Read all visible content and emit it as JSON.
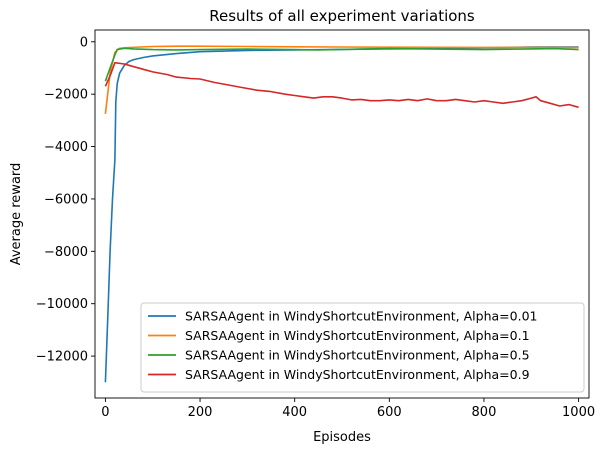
{
  "chart_data": {
    "type": "line",
    "title": "Results of all experiment variations",
    "xlabel": "Episodes",
    "ylabel": "Average reward",
    "xlim": [
      -22,
      1022
    ],
    "ylim": [
      -13600,
      450
    ],
    "xticks": [
      0,
      200,
      400,
      600,
      800,
      1000
    ],
    "yticks": [
      0,
      -2000,
      -4000,
      -6000,
      -8000,
      -10000,
      -12000
    ],
    "xtick_labels": [
      "0",
      "200",
      "400",
      "600",
      "800",
      "1000"
    ],
    "ytick_labels": [
      "0",
      "−2000",
      "−4000",
      "−6000",
      "−8000",
      "−10000",
      "−12000"
    ],
    "grid": false,
    "legend_position": "lower-right",
    "series": [
      {
        "name": "SARSAAgent in WindyShortcutEnvironment, Alpha=0.01",
        "color": "#1f77b4",
        "points": [
          [
            0,
            -13000
          ],
          [
            5,
            -10500
          ],
          [
            10,
            -8000
          ],
          [
            15,
            -6000
          ],
          [
            20,
            -4500
          ],
          [
            22,
            -2300
          ],
          [
            25,
            -1600
          ],
          [
            30,
            -1200
          ],
          [
            40,
            -900
          ],
          [
            50,
            -750
          ],
          [
            60,
            -680
          ],
          [
            80,
            -600
          ],
          [
            100,
            -540
          ],
          [
            150,
            -450
          ],
          [
            200,
            -380
          ],
          [
            300,
            -330
          ],
          [
            400,
            -310
          ],
          [
            500,
            -290
          ],
          [
            600,
            -270
          ],
          [
            700,
            -260
          ],
          [
            800,
            -230
          ],
          [
            900,
            -200
          ],
          [
            1000,
            -200
          ]
        ]
      },
      {
        "name": "SARSAAgent in WindyShortcutEnvironment, Alpha=0.1",
        "color": "#ff7f0e",
        "points": [
          [
            0,
            -2750
          ],
          [
            10,
            -1200
          ],
          [
            20,
            -400
          ],
          [
            30,
            -250
          ],
          [
            50,
            -220
          ],
          [
            100,
            -180
          ],
          [
            150,
            -170
          ],
          [
            200,
            -170
          ],
          [
            300,
            -180
          ],
          [
            400,
            -190
          ],
          [
            500,
            -200
          ],
          [
            600,
            -205
          ],
          [
            700,
            -210
          ],
          [
            800,
            -215
          ],
          [
            900,
            -215
          ],
          [
            1000,
            -220
          ]
        ]
      },
      {
        "name": "SARSAAgent in WindyShortcutEnvironment, Alpha=0.5",
        "color": "#2ca02c",
        "points": [
          [
            0,
            -1500
          ],
          [
            10,
            -1000
          ],
          [
            20,
            -500
          ],
          [
            25,
            -290
          ],
          [
            40,
            -250
          ],
          [
            60,
            -270
          ],
          [
            100,
            -300
          ],
          [
            150,
            -310
          ],
          [
            200,
            -300
          ],
          [
            300,
            -280
          ],
          [
            400,
            -300
          ],
          [
            450,
            -310
          ],
          [
            500,
            -290
          ],
          [
            600,
            -260
          ],
          [
            700,
            -280
          ],
          [
            800,
            -300
          ],
          [
            900,
            -270
          ],
          [
            950,
            -260
          ],
          [
            1000,
            -300
          ]
        ]
      },
      {
        "name": "SARSAAgent in WindyShortcutEnvironment, Alpha=0.9",
        "color": "#d62728",
        "points": [
          [
            0,
            -1700
          ],
          [
            10,
            -1300
          ],
          [
            20,
            -800
          ],
          [
            40,
            -850
          ],
          [
            60,
            -950
          ],
          [
            80,
            -1050
          ],
          [
            100,
            -1150
          ],
          [
            130,
            -1250
          ],
          [
            150,
            -1350
          ],
          [
            180,
            -1400
          ],
          [
            200,
            -1420
          ],
          [
            230,
            -1550
          ],
          [
            260,
            -1650
          ],
          [
            290,
            -1750
          ],
          [
            320,
            -1850
          ],
          [
            350,
            -1900
          ],
          [
            380,
            -2000
          ],
          [
            400,
            -2050
          ],
          [
            420,
            -2100
          ],
          [
            440,
            -2150
          ],
          [
            460,
            -2100
          ],
          [
            480,
            -2100
          ],
          [
            500,
            -2150
          ],
          [
            520,
            -2220
          ],
          [
            540,
            -2200
          ],
          [
            560,
            -2250
          ],
          [
            580,
            -2250
          ],
          [
            600,
            -2220
          ],
          [
            620,
            -2250
          ],
          [
            640,
            -2200
          ],
          [
            660,
            -2250
          ],
          [
            680,
            -2180
          ],
          [
            700,
            -2250
          ],
          [
            720,
            -2250
          ],
          [
            740,
            -2200
          ],
          [
            760,
            -2250
          ],
          [
            780,
            -2300
          ],
          [
            800,
            -2250
          ],
          [
            820,
            -2300
          ],
          [
            840,
            -2350
          ],
          [
            860,
            -2300
          ],
          [
            880,
            -2250
          ],
          [
            900,
            -2150
          ],
          [
            910,
            -2100
          ],
          [
            920,
            -2250
          ],
          [
            940,
            -2350
          ],
          [
            960,
            -2450
          ],
          [
            980,
            -2400
          ],
          [
            1000,
            -2500
          ]
        ]
      }
    ]
  }
}
